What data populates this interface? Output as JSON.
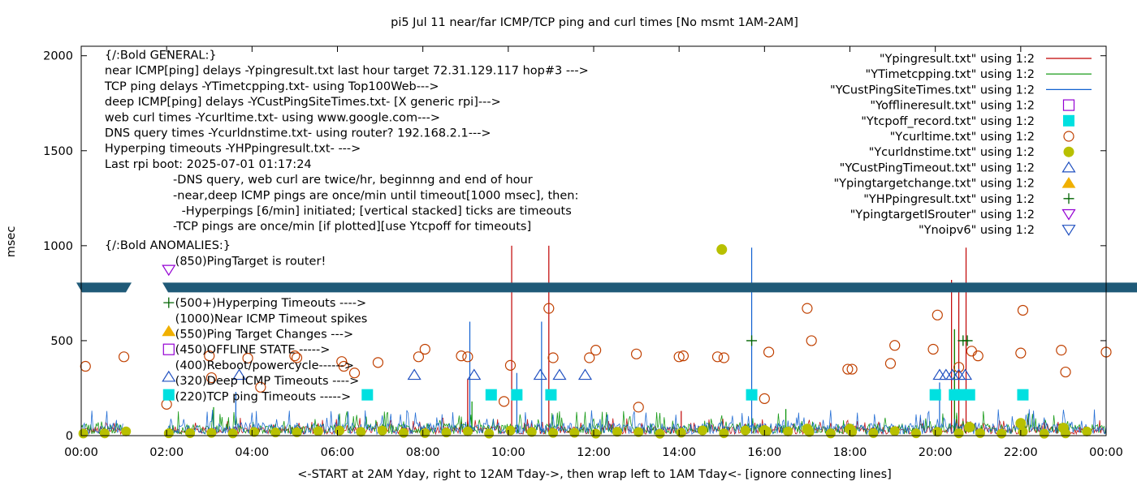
{
  "chart_data": {
    "type": "scatter",
    "title": "pi5 Jul 11  near/far ICMP/TCP ping and curl times [No msmt 1AM-2AM]",
    "xlabel": "<-START at 2AM Yday, right to 12AM Tday->, then wrap left to 1AM Tday<- [ignore connecting lines]",
    "ylabel": "msec",
    "x_unit": "hours",
    "xlim": [
      0,
      24
    ],
    "ylim": [
      0,
      2050
    ],
    "x_ticks": [
      {
        "value": 0,
        "label": "00:00"
      },
      {
        "value": 2,
        "label": "02:00"
      },
      {
        "value": 4,
        "label": "04:00"
      },
      {
        "value": 6,
        "label": "06:00"
      },
      {
        "value": 8,
        "label": "08:00"
      },
      {
        "value": 10,
        "label": "10:00"
      },
      {
        "value": 12,
        "label": "12:00"
      },
      {
        "value": 14,
        "label": "14:00"
      },
      {
        "value": 16,
        "label": "16:00"
      },
      {
        "value": 18,
        "label": "18:00"
      },
      {
        "value": 20,
        "label": "20:00"
      },
      {
        "value": 22,
        "label": "22:00"
      },
      {
        "value": 24,
        "label": "00:00"
      }
    ],
    "y_ticks": [
      {
        "value": 0,
        "label": "0"
      },
      {
        "value": 500,
        "label": "500"
      },
      {
        "value": 1000,
        "label": "1000"
      },
      {
        "value": 1500,
        "label": "1500"
      },
      {
        "value": 2000,
        "label": "2000"
      }
    ],
    "grid": false,
    "legend_position": "top-right",
    "banner_y": 780,
    "notes": [
      {
        "text": "{/:Bold GENERAL:}",
        "x": 0.55,
        "y": 2005
      },
      {
        "text": "near ICMP[ping] delays -Ypingresult.txt last hour target 72.31.129.117 hop#3 --->",
        "x": 0.55,
        "y": 1923
      },
      {
        "text": "TCP ping delays -YTimetcpping.txt- using Top100Web--->",
        "x": 0.55,
        "y": 1841
      },
      {
        "text": "deep ICMP[ping] delays -YCustPingSiteTimes.txt- [X generic rpi]--->",
        "x": 0.55,
        "y": 1759
      },
      {
        "text": "web curl times -Ycurltime.txt- using www.google.com--->",
        "x": 0.55,
        "y": 1677
      },
      {
        "text": "DNS query times -Ycurldnstime.txt- using router? 192.168.2.1--->",
        "x": 0.55,
        "y": 1595
      },
      {
        "text": "Hyperping timeouts -YHPpingresult.txt- --->",
        "x": 0.55,
        "y": 1513
      },
      {
        "text": "Last rpi boot: 2025-07-01 01:17:24",
        "x": 0.55,
        "y": 1431
      },
      {
        "text": "-DNS query, web curl are twice/hr, beginnng and end of hour",
        "x": 2.15,
        "y": 1349
      },
      {
        "text": "-near,deep ICMP pings are once/min until timeout[1000 msec], then:",
        "x": 2.15,
        "y": 1267
      },
      {
        "text": "-Hyperpings [6/min] initiated; [vertical stacked] ticks are timeouts",
        "x": 2.35,
        "y": 1185
      },
      {
        "text": "-TCP pings are once/min [if plotted][use Ytcpoff for timeouts]",
        "x": 2.15,
        "y": 1103
      },
      {
        "text": "{/:Bold ANOMALIES:}",
        "x": 0.55,
        "y": 1003
      },
      {
        "text": "(850)PingTarget is router!",
        "x": 2.2,
        "y": 921
      },
      {
        "text": "(500+)Hyperping Timeouts ---->",
        "x": 2.2,
        "y": 700
      },
      {
        "text": "(1000)Near ICMP Timeout spikes",
        "x": 2.2,
        "y": 618
      },
      {
        "text": "(550)Ping Target Changes --->",
        "x": 2.2,
        "y": 536
      },
      {
        "text": "(450)OFFLINE STATE ----->",
        "x": 2.2,
        "y": 454
      },
      {
        "text": "(400)Reboot/powercycle------>",
        "x": 2.2,
        "y": 372
      },
      {
        "text": "(320)Deep ICMP Timeouts ---->",
        "x": 2.2,
        "y": 290
      },
      {
        "text": "(220)TCP ping Timeouts ----->",
        "x": 2.2,
        "y": 208
      }
    ],
    "anomaly_markers": [
      {
        "symbol": "triangle-down-open",
        "color": "#9400d3",
        "x": 2.05,
        "y": 873
      },
      {
        "symbol": "plus",
        "color": "#006400",
        "x": 2.05,
        "y": 700
      },
      {
        "symbol": "triangle-up-filled",
        "color": "#f0b000",
        "x": 2.05,
        "y": 550
      },
      {
        "symbol": "square-open",
        "color": "#9400d3",
        "x": 2.05,
        "y": 454
      },
      {
        "symbol": "triangle-up-open",
        "color": "#2050c0",
        "x": 2.05,
        "y": 310
      },
      {
        "symbol": "square-filled",
        "color": "#00e0e0",
        "x": 2.05,
        "y": 215
      }
    ],
    "series": [
      {
        "name": "\"Ypingresult.txt\" using 1:2",
        "color": "#c00000",
        "style": "line",
        "spikes": [
          [
            10.08,
            1000
          ],
          [
            10.95,
            1000
          ],
          [
            20.38,
            820
          ],
          [
            20.55,
            780
          ],
          [
            20.72,
            990
          ],
          [
            20.45,
            560
          ],
          [
            9.05,
            300
          ],
          [
            14.05,
            130
          ]
        ]
      },
      {
        "name": "\"YTimetcpping.txt\" using 1:2",
        "color": "#009000",
        "style": "line",
        "spikes": [
          [
            20.45,
            560
          ],
          [
            9.15,
            180
          ],
          [
            16.5,
            140
          ],
          [
            3.1,
            150
          ]
        ]
      },
      {
        "name": "\"YCustPingSiteTimes.txt\" using 1:2",
        "color": "#1060d0",
        "style": "line",
        "spikes": [
          [
            15.7,
            990
          ],
          [
            10.78,
            600
          ],
          [
            9.1,
            600
          ],
          [
            10.2,
            330
          ],
          [
            3.62,
            230
          ],
          [
            20.1,
            280
          ]
        ]
      },
      {
        "name": "\"Yofflineresult.txt\" using 1:2",
        "color": "#9400d3",
        "symbol": "square-open",
        "points": []
      },
      {
        "name": "\"Ytcpoff_record.txt\" using 1:2",
        "color": "#00e0e0",
        "symbol": "square-filled",
        "points": [
          [
            6.7,
            215
          ],
          [
            9.6,
            215
          ],
          [
            10.2,
            215
          ],
          [
            11.0,
            215
          ],
          [
            15.7,
            215
          ],
          [
            20.0,
            215
          ],
          [
            20.45,
            215
          ],
          [
            20.6,
            215
          ],
          [
            20.8,
            215
          ],
          [
            22.05,
            215
          ]
        ]
      },
      {
        "name": "\"Ycurltime.txt\" using 1:2",
        "color": "#c04000",
        "symbol": "circle-open",
        "points": [
          [
            0.1,
            365
          ],
          [
            1.0,
            415
          ],
          [
            2.0,
            165
          ],
          [
            3.0,
            420
          ],
          [
            3.05,
            305
          ],
          [
            3.9,
            408
          ],
          [
            4.2,
            255
          ],
          [
            5.0,
            420
          ],
          [
            5.05,
            410
          ],
          [
            6.1,
            390
          ],
          [
            6.15,
            365
          ],
          [
            6.4,
            330
          ],
          [
            6.95,
            385
          ],
          [
            7.9,
            415
          ],
          [
            8.05,
            455
          ],
          [
            8.9,
            420
          ],
          [
            9.05,
            415
          ],
          [
            9.9,
            180
          ],
          [
            10.05,
            370
          ],
          [
            10.95,
            670
          ],
          [
            11.05,
            410
          ],
          [
            11.9,
            410
          ],
          [
            12.05,
            450
          ],
          [
            13.0,
            430
          ],
          [
            13.05,
            150
          ],
          [
            14.0,
            415
          ],
          [
            14.1,
            420
          ],
          [
            14.9,
            415
          ],
          [
            15.05,
            410
          ],
          [
            16.0,
            195
          ],
          [
            16.1,
            440
          ],
          [
            17.0,
            670
          ],
          [
            17.1,
            500
          ],
          [
            17.95,
            350
          ],
          [
            18.05,
            350
          ],
          [
            18.95,
            380
          ],
          [
            19.05,
            475
          ],
          [
            19.95,
            455
          ],
          [
            20.05,
            635
          ],
          [
            20.55,
            360
          ],
          [
            20.85,
            445
          ],
          [
            21.0,
            420
          ],
          [
            22.0,
            435
          ],
          [
            22.05,
            660
          ],
          [
            22.95,
            450
          ],
          [
            23.05,
            335
          ],
          [
            24.0,
            440
          ]
        ]
      },
      {
        "name": "\"Ycurldnstime.txt\" using 1:2",
        "color": "#b8c000",
        "symbol": "circle-filled",
        "points": [
          [
            15.0,
            980
          ],
          [
            22.0,
            65
          ],
          [
            20.8,
            45
          ],
          [
            23.0,
            40
          ],
          [
            18.0,
            35
          ],
          [
            16.0,
            28
          ],
          [
            17.0,
            35
          ]
        ]
      },
      {
        "name": "\"YCustPingTimeout.txt\" using 1:2",
        "color": "#2050c0",
        "symbol": "triangle-up-open",
        "points": [
          [
            3.7,
            320
          ],
          [
            7.8,
            320
          ],
          [
            9.2,
            320
          ],
          [
            10.75,
            320
          ],
          [
            11.2,
            320
          ],
          [
            11.8,
            320
          ],
          [
            20.1,
            320
          ],
          [
            20.25,
            320
          ],
          [
            20.4,
            320
          ],
          [
            20.55,
            320
          ],
          [
            20.7,
            320
          ]
        ]
      },
      {
        "name": "\"Ypingtargetchange.txt\" using 1:2",
        "color": "#f0b000",
        "symbol": "triangle-up-filled",
        "points": []
      },
      {
        "name": "\"YHPpingresult.txt\" using 1:2",
        "color": "#006400",
        "symbol": "plus",
        "points": [
          [
            15.7,
            500
          ],
          [
            20.65,
            500
          ],
          [
            20.75,
            500
          ]
        ]
      },
      {
        "name": "\"YpingtargetISrouter\" using 1:2",
        "color": "#9400d3",
        "symbol": "triangle-down-open",
        "points": []
      },
      {
        "name": "\"Ynoipv6\" using 1:2",
        "color": "#2050c0",
        "symbol": "triangle-down-open",
        "points": []
      }
    ]
  }
}
